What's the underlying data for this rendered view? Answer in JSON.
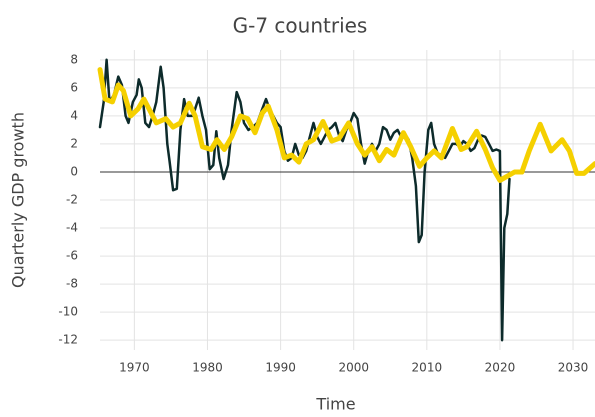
{
  "chart_data": {
    "type": "line",
    "title": "G-7 countries",
    "xlabel": "Time",
    "ylabel": "Quarterly GDP growth",
    "xlim": [
      1965.3,
      2033
    ],
    "ylim": [
      -12.7,
      8.7
    ],
    "xticks": [
      1970,
      1980,
      1990,
      2000,
      2010,
      2020,
      2030
    ],
    "yticks": [
      -12,
      -10,
      -8,
      -6,
      -4,
      -2,
      0,
      2,
      4,
      6,
      8
    ],
    "grid": true,
    "series": [
      {
        "color": "#0d2b2b",
        "x": [
          1965.3,
          1965.8,
          1966.2,
          1966.6,
          1967.2,
          1967.8,
          1968.3,
          1968.8,
          1969.2,
          1969.8,
          1970.3,
          1970.6,
          1971,
          1971.5,
          1972,
          1972.5,
          1973,
          1973.6,
          1974,
          1974.5,
          1974.8,
          1975.3,
          1975.8,
          1976.3,
          1976.8,
          1977.3,
          1978,
          1978.8,
          1979.3,
          1979.8,
          1980.3,
          1980.8,
          1981.2,
          1981.6,
          1982.2,
          1982.8,
          1983.3,
          1984,
          1984.5,
          1985,
          1985.6,
          1986.2,
          1986.8,
          1987.5,
          1988,
          1988.5,
          1989,
          1989.5,
          1990,
          1990.5,
          1991,
          1991.5,
          1992,
          1992.5,
          1993,
          1993.5,
          1994,
          1994.5,
          1995,
          1995.5,
          1996,
          1996.5,
          1997,
          1997.5,
          1998,
          1998.5,
          1999,
          1999.5,
          2000,
          2000.5,
          2001,
          2001.5,
          2002,
          2002.5,
          2003,
          2003.5,
          2004,
          2004.5,
          2005,
          2005.5,
          2006,
          2006.5,
          2007,
          2007.5,
          2008,
          2008.5,
          2008.9,
          2009.3,
          2009.7,
          2010.2,
          2010.6,
          2011,
          2011.5,
          2012,
          2012.5,
          2013,
          2013.5,
          2014,
          2014.5,
          2015,
          2015.5,
          2016,
          2016.5,
          2017,
          2017.5,
          2018,
          2018.5,
          2019,
          2019.5,
          2020,
          2020.3,
          2020.6,
          2021,
          2021.3
        ],
        "values": [
          3.2,
          5,
          8,
          5,
          5.5,
          6.8,
          6.2,
          4,
          3.5,
          5,
          5.5,
          6.6,
          6,
          3.5,
          3.2,
          4,
          5,
          7.5,
          6,
          2,
          0.8,
          -1.3,
          -1.2,
          3,
          5.2,
          4,
          4,
          5.3,
          4,
          3,
          0.2,
          0.5,
          2.9,
          1,
          -0.5,
          0.5,
          3,
          5.7,
          5,
          3.5,
          3,
          3.2,
          3.5,
          4.5,
          5.2,
          4.5,
          4,
          3.5,
          3.2,
          1.5,
          0.8,
          1,
          2,
          1.2,
          1,
          1.5,
          2.5,
          3.5,
          2.5,
          2,
          2.5,
          3,
          3.2,
          3.5,
          2.6,
          2.2,
          3,
          3.5,
          4.2,
          3.8,
          2,
          0.6,
          1.5,
          2,
          1.5,
          2,
          3.2,
          3,
          2.3,
          2.8,
          3,
          2.5,
          2.7,
          2.3,
          1,
          -1,
          -5,
          -4.5,
          0,
          3,
          3.5,
          2,
          1.3,
          1.2,
          1,
          1.5,
          2,
          2,
          1.8,
          2.2,
          2,
          1.5,
          1.7,
          2.3,
          2.6,
          2.5,
          2,
          1.5,
          1.6,
          1.5,
          -12,
          -4,
          -3,
          -0.5
        ]
      },
      {
        "color": "#f5d000",
        "x": [
          1965.3,
          1966,
          1967,
          1967.8,
          1968.5,
          1969.5,
          1970.5,
          1971.3,
          1972,
          1973,
          1974.3,
          1975.3,
          1976.3,
          1977.5,
          1978.3,
          1979.3,
          1980.5,
          1981.3,
          1982.3,
          1983.3,
          1984.5,
          1985.5,
          1986.5,
          1987.5,
          1988.3,
          1989.5,
          1990.5,
          1991.5,
          1992.5,
          1993.5,
          1994.5,
          1995.8,
          1997,
          1998,
          1999.3,
          2000.5,
          2001.5,
          2002.5,
          2003.5,
          2004.5,
          2005.5,
          2006.8,
          2007.8,
          2009,
          2010,
          2011,
          2012,
          2013.5,
          2014.7,
          2015.5,
          2016.8,
          2018,
          2019,
          2020,
          2021,
          2022,
          2023,
          2024,
          2025.5,
          2027,
          2028.5,
          2029.5,
          2030.5,
          2031.5,
          2033
        ],
        "values": [
          7.3,
          5.2,
          5,
          6.2,
          5.8,
          4,
          4.5,
          5.2,
          4.5,
          3.5,
          3.8,
          3.2,
          3.5,
          4.9,
          4,
          1.8,
          1.6,
          2.3,
          1.6,
          2.5,
          4,
          3.8,
          2.8,
          4.2,
          4.7,
          3,
          1,
          1.2,
          0.7,
          2,
          2.3,
          3.6,
          2.2,
          2.4,
          3.5,
          2,
          1.2,
          1.8,
          0.8,
          1.6,
          1.2,
          2.8,
          1.8,
          0.4,
          1,
          1.5,
          1,
          3.1,
          1.6,
          1.8,
          2.9,
          1.6,
          0.3,
          -0.6,
          -0.3,
          0,
          0,
          1.5,
          3.4,
          1.5,
          2.3,
          1.5,
          -0.1,
          -0.1,
          0.6
        ]
      }
    ]
  }
}
